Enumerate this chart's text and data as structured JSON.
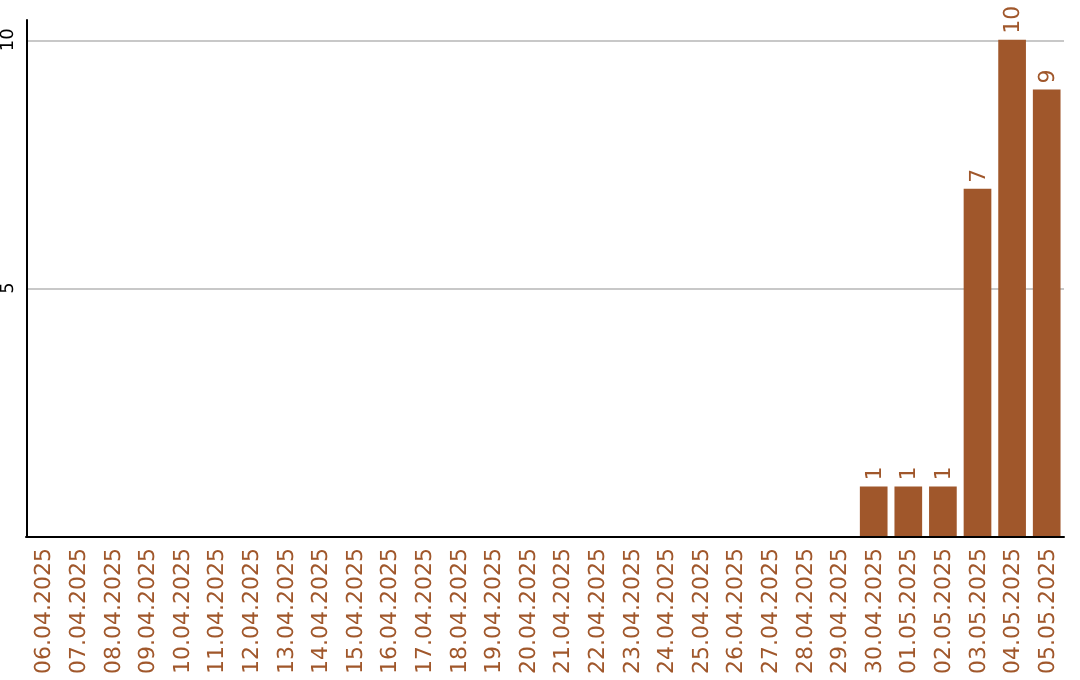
{
  "chart_data": {
    "type": "bar",
    "categories": [
      "06.04.2025",
      "07.04.2025",
      "08.04.2025",
      "09.04.2025",
      "10.04.2025",
      "11.04.2025",
      "12.04.2025",
      "13.04.2025",
      "14.04.2025",
      "15.04.2025",
      "16.04.2025",
      "17.04.2025",
      "18.04.2025",
      "19.04.2025",
      "20.04.2025",
      "21.04.2025",
      "22.04.2025",
      "23.04.2025",
      "24.04.2025",
      "25.04.2025",
      "26.04.2025",
      "27.04.2025",
      "28.04.2025",
      "29.04.2025",
      "30.04.2025",
      "01.05.2025",
      "02.05.2025",
      "03.05.2025",
      "04.05.2025",
      "05.05.2025"
    ],
    "values": [
      0,
      0,
      0,
      0,
      0,
      0,
      0,
      0,
      0,
      0,
      0,
      0,
      0,
      0,
      0,
      0,
      0,
      0,
      0,
      0,
      0,
      0,
      0,
      0,
      1,
      1,
      1,
      7,
      10,
      9
    ],
    "value_labels": [
      null,
      null,
      null,
      null,
      null,
      null,
      null,
      null,
      null,
      null,
      null,
      null,
      null,
      null,
      null,
      null,
      null,
      null,
      null,
      null,
      null,
      null,
      null,
      null,
      "1",
      "1",
      "1",
      "7",
      "10",
      "9"
    ],
    "color": "#a0572b",
    "ylim": [
      0,
      10.4
    ],
    "yticks": [
      5,
      10
    ],
    "grid": "y"
  }
}
